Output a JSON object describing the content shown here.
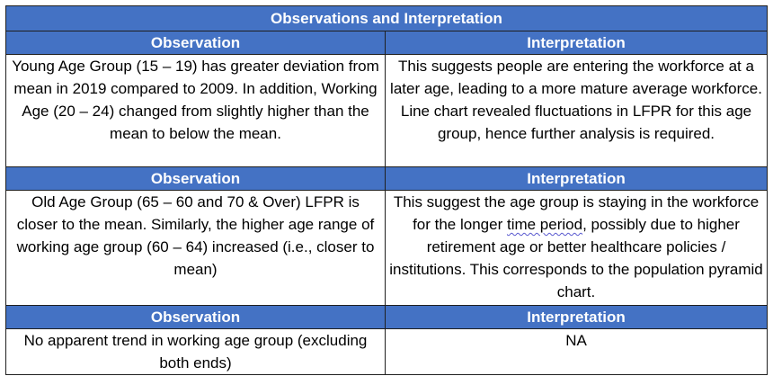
{
  "table": {
    "title": "Observations and Interpretation",
    "sections": [
      {
        "observation_header": "Observation",
        "interpretation_header": "Interpretation",
        "observation": "Young Age Group (15 – 19) has greater deviation from mean in 2019 compared to 2009. In addition, Working Age (20 – 24) changed from slightly higher than the mean to below the mean.",
        "interpretation": "This suggests people are entering the workforce at a later age, leading to a more mature average workforce. Line chart revealed fluctuations in LFPR for this age group, hence further analysis is required."
      },
      {
        "observation_header": "Observation",
        "interpretation_header": "Interpretation",
        "observation": "Old Age Group (65 – 60 and 70 & Over) LFPR is closer to the mean. Similarly, the higher age range of working age group (60 – 64) increased (i.e., closer to mean)",
        "interpretation_before": "This suggest the age group is staying in the workforce for the longer ",
        "interpretation_flagged": "time period",
        "interpretation_after": ", possibly due to higher retirement age or better healthcare policies / institutions. This corresponds to the population pyramid chart."
      },
      {
        "observation_header": "Observation",
        "interpretation_header": "Interpretation",
        "observation": "No apparent trend in working age group (excluding both ends)",
        "interpretation": "NA"
      }
    ]
  }
}
